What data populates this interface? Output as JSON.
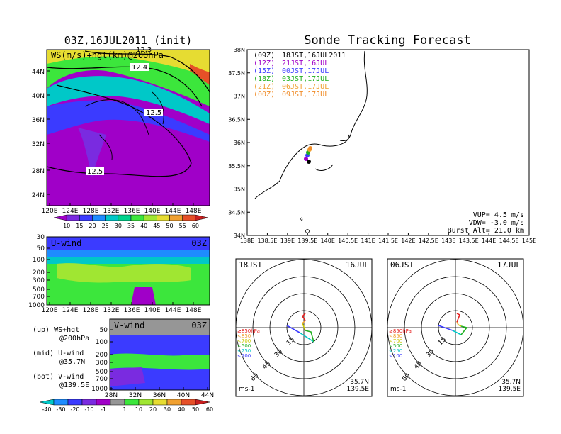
{
  "left_title": "03Z,16JUL2011 (init)",
  "right_title": "Sonde Tracking Forecast",
  "ws_panel": {
    "label": "WS(m/s)+hgt(km)@200hPa",
    "lat_ticks": [
      "44N",
      "40N",
      "36N",
      "32N",
      "28N",
      "24N"
    ],
    "lon_ticks": [
      "120E",
      "124E",
      "128E",
      "132E",
      "136E",
      "140E",
      "144E",
      "148E"
    ],
    "contours": [
      "12.3",
      "12.4",
      "12.5",
      "12.5"
    ]
  },
  "ws_colorbar": {
    "labels": [
      "10",
      "15",
      "20",
      "25",
      "30",
      "35",
      "40",
      "45",
      "50",
      "55",
      "60"
    ],
    "colors": [
      "#a000c8",
      "#7a2be0",
      "#3b3bff",
      "#1e8cff",
      "#00c8c8",
      "#00d28c",
      "#3ce63c",
      "#a0e632",
      "#e6dc32",
      "#f0a030",
      "#e65028",
      "#c81e1e"
    ]
  },
  "u_panel": {
    "label": "U-wind",
    "time": "03Z",
    "p_ticks": [
      "30",
      "50",
      "100",
      "200",
      "300",
      "500",
      "700",
      "1000"
    ],
    "lon_ticks": [
      "120E",
      "124E",
      "128E",
      "132E",
      "136E",
      "140E",
      "144E",
      "148E"
    ]
  },
  "v_panel": {
    "label": "V-wind",
    "time": "03Z",
    "p_ticks": [
      "50",
      "100",
      "200",
      "300",
      "500",
      "700",
      "1000"
    ],
    "lat_ticks": [
      "28N",
      "32N",
      "36N",
      "40N",
      "44N"
    ]
  },
  "legend_lines": [
    {
      "a": "(up) WS+hgt",
      "b": "@200hPa"
    },
    {
      "a": "(mid) U-wind",
      "b": "@35.7N"
    },
    {
      "a": "(bot) V-wind",
      "b": "@139.5E"
    }
  ],
  "v_colorbar": {
    "labels": [
      "-40",
      "-30",
      "-20",
      "-10",
      "-1",
      "1",
      "10",
      "20",
      "30",
      "40",
      "50",
      "60"
    ],
    "colors": [
      "#00c8c8",
      "#1e8cff",
      "#3b3bff",
      "#7a2be0",
      "#a000c8",
      "#969696",
      "#3ce63c",
      "#a0e632",
      "#e6dc32",
      "#f0a030",
      "#e65028",
      "#c81e1e"
    ]
  },
  "map_panel": {
    "lat_ticks": [
      "38N",
      "37.5N",
      "37N",
      "36.5N",
      "36N",
      "35.5N",
      "35N",
      "34.5N",
      "34N"
    ],
    "lon_ticks": [
      "138E",
      "138.5E",
      "139E",
      "139.5E",
      "140E",
      "140.5E",
      "141E",
      "141.5E",
      "142E",
      "142.5E",
      "143E",
      "143.5E",
      "144E",
      "144.5E",
      "145E"
    ],
    "launches": [
      {
        "utc": "(09Z)",
        "jst": "18JST,16JUL2011",
        "color": "#000000"
      },
      {
        "utc": "(12Z)",
        "jst": "21JST,16JUL",
        "color": "#a000c8"
      },
      {
        "utc": "(15Z)",
        "jst": "00JST,17JUL",
        "color": "#3b3bff"
      },
      {
        "utc": "(18Z)",
        "jst": "03JST,17JUL",
        "color": "#20b020"
      },
      {
        "utc": "(21Z)",
        "jst": "06JST,17JUL",
        "color": "#f0a030"
      },
      {
        "utc": "(00Z)",
        "jst": "09JST,17JUL",
        "color": "#f08c28"
      }
    ],
    "params": [
      "VUP= 4.5 m/s",
      "VDW= -3.0 m/s",
      "Burst Alt= 21.0 km"
    ]
  },
  "hodographs": [
    {
      "time": "18JST",
      "date": "16JUL",
      "loc1": "35.7N",
      "loc2": "139.5E",
      "unit": "ms-1",
      "rings": [
        "15",
        "30",
        "45",
        "60"
      ]
    },
    {
      "time": "06JST",
      "date": "17JUL",
      "loc1": "35.7N",
      "loc2": "139.5E",
      "unit": "ms-1",
      "rings": [
        "15",
        "30",
        "45",
        "60"
      ]
    }
  ],
  "hodo_legend": [
    {
      "text": "≥850hPa",
      "color": "#e62020"
    },
    {
      "text": "<850",
      "color": "#f0a030"
    },
    {
      "text": "<700",
      "color": "#c8c800"
    },
    {
      "text": "<500",
      "color": "#20b020"
    },
    {
      "text": "<250",
      "color": "#00c8c8"
    },
    {
      "text": "<100",
      "color": "#3b3bff"
    }
  ]
}
